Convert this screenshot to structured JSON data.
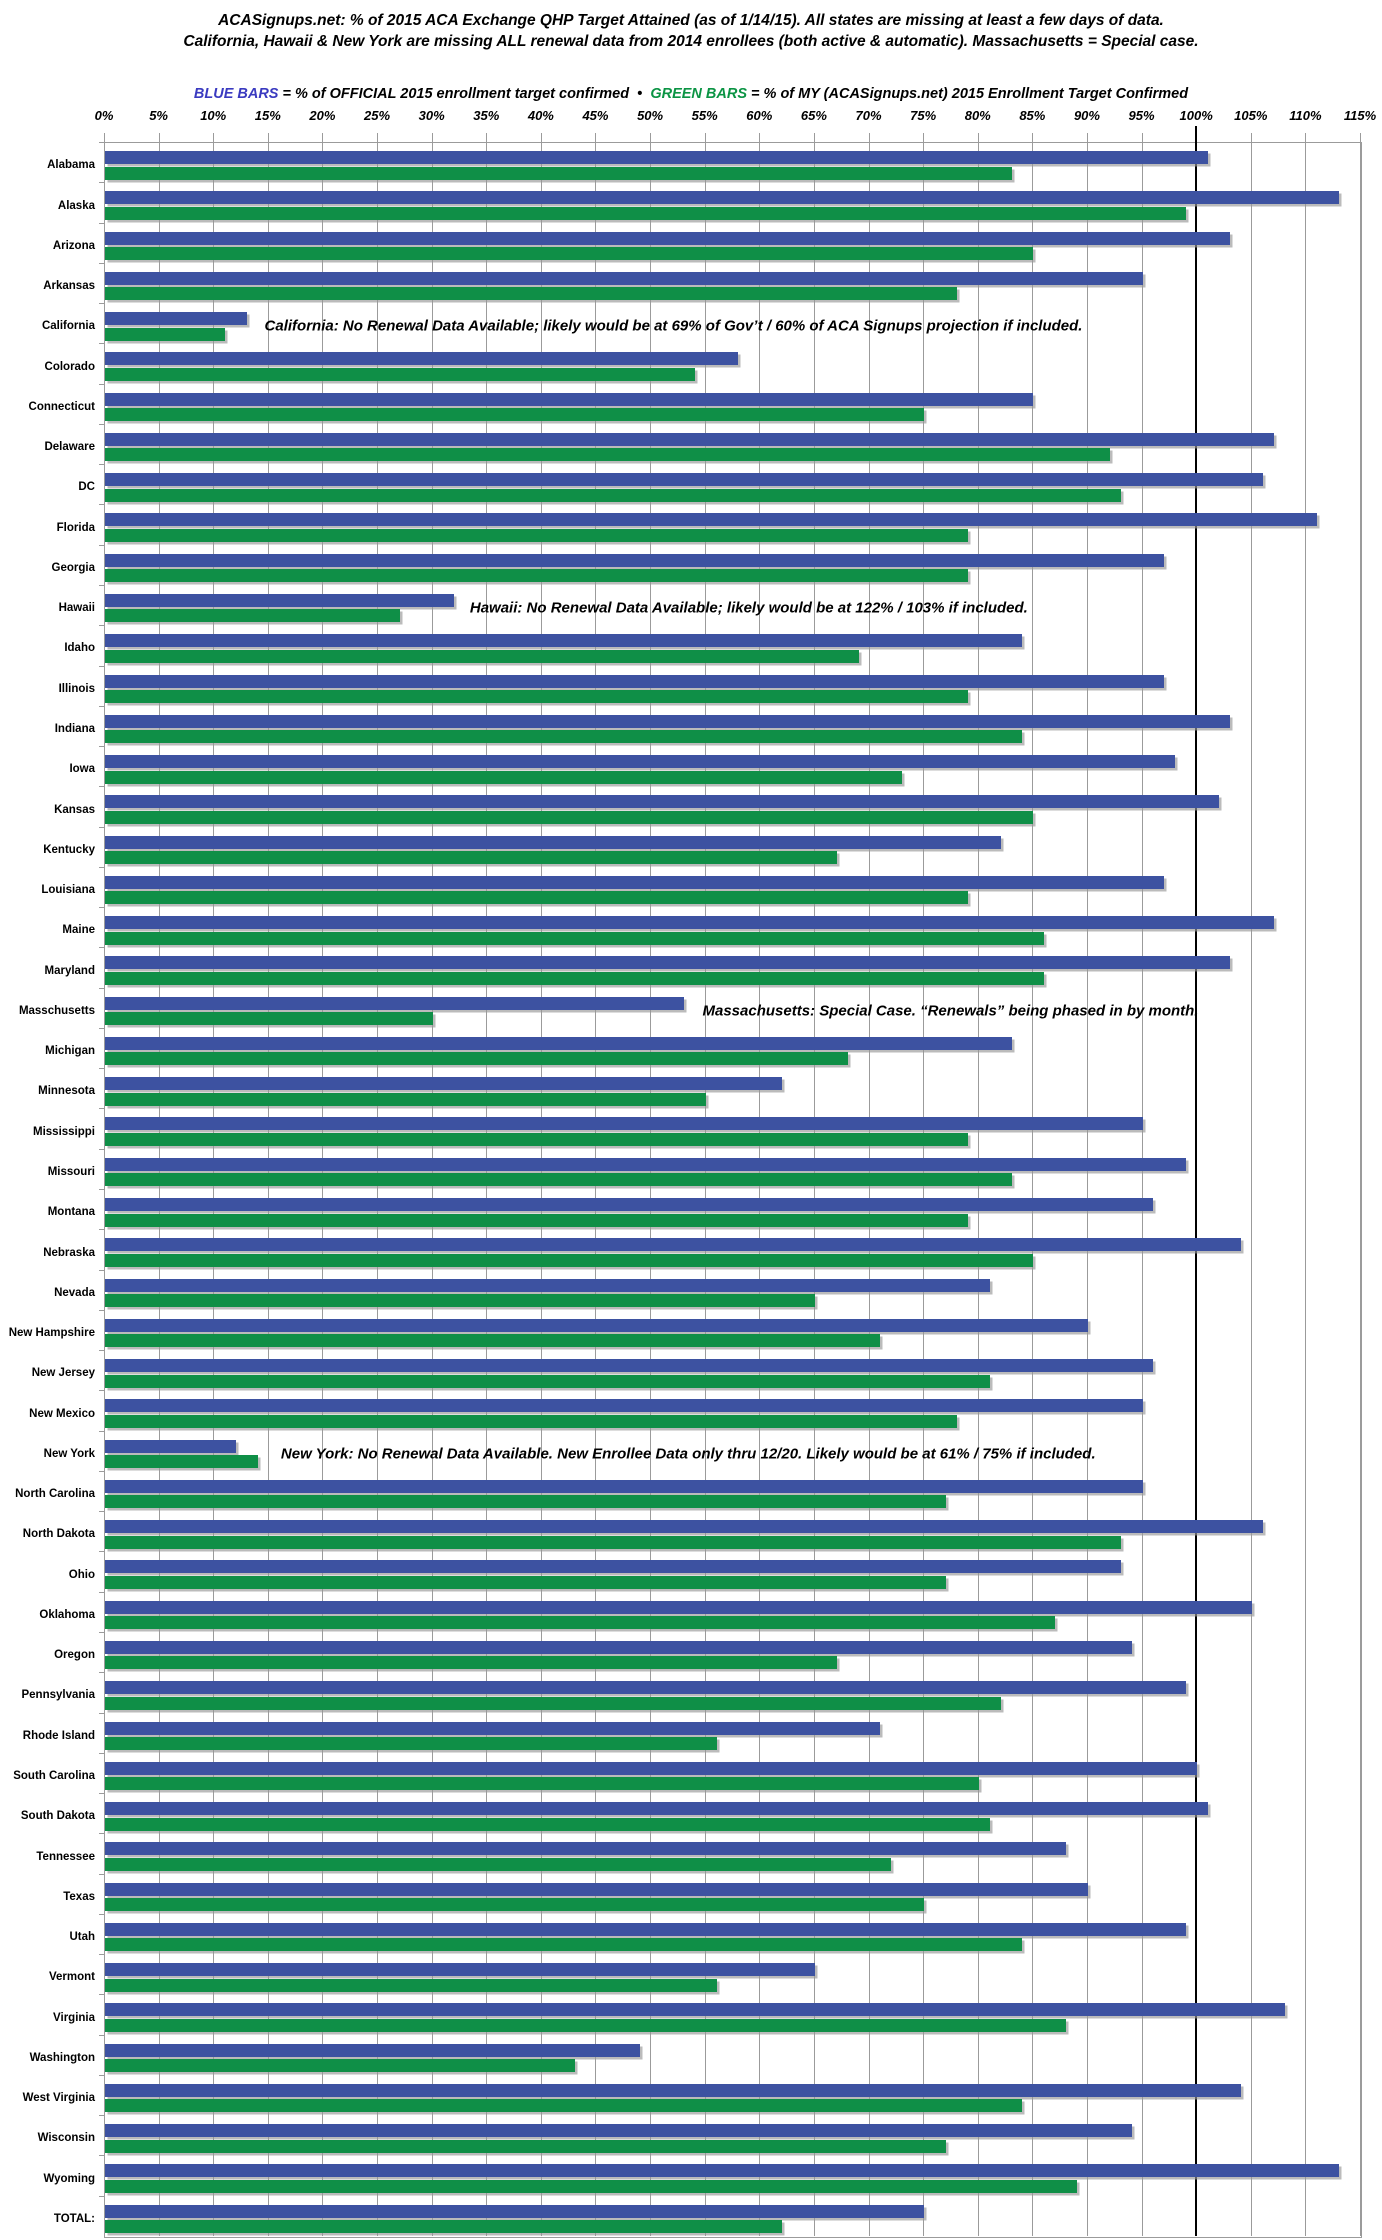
{
  "header": {
    "title_line1": "ACASignups.net: % of 2015 ACA Exchange QHP Target Attained (as of 1/14/15). All states are missing at least a few days of data.",
    "title_line2": "California, Hawaii & New York are missing ALL renewal data from 2014 enrollees (both active & automatic). Massachusetts = Special case.",
    "legend": {
      "blue_label": "BLUE BARS",
      "blue_text": " = % of OFFICIAL 2015 enrollment target confirmed",
      "separator": "  •  ",
      "green_label": "GREEN BARS",
      "green_text": " = % of MY (ACASignups.net) 2015 Enrollment Target Confirmed"
    }
  },
  "colors": {
    "bar_blue": "#3D52A1",
    "bar_green": "#0F8F47",
    "legend_blue_text": "#3A3AC0",
    "legend_green_text": "#0B9444",
    "gridline": "#9b9b9b",
    "reference_line": "#000000"
  },
  "chart_data": {
    "type": "bar",
    "orientation": "horizontal",
    "title": "ACASignups.net: % of 2015 ACA Exchange QHP Target Attained (as of 1/14/15)",
    "x_axis": {
      "min": 0,
      "max": 115,
      "step": 5,
      "tick_suffix": "%",
      "reference_line_pct": 100,
      "grid": true
    },
    "series": [
      {
        "name": "% of OFFICIAL 2015 enrollment target confirmed",
        "color": "#3D52A1",
        "key": "official_pct"
      },
      {
        "name": "% of MY (ACASignups.net) 2015 Enrollment Target Confirmed",
        "color": "#0F8F47",
        "key": "acasignups_pct"
      }
    ],
    "rows": [
      {
        "label": "Alabama",
        "official_pct": 101,
        "acasignups_pct": 83
      },
      {
        "label": "Alaska",
        "official_pct": 113,
        "acasignups_pct": 99
      },
      {
        "label": "Arizona",
        "official_pct": 103,
        "acasignups_pct": 85
      },
      {
        "label": "Arkansas",
        "official_pct": 95,
        "acasignups_pct": 78
      },
      {
        "label": "California",
        "official_pct": 13,
        "acasignups_pct": 11,
        "note": "California: No Renewal Data Available; likely would be at 69% of Gov’t / 60% of ACA Signups projection if included.",
        "note_x_pct": 14.7
      },
      {
        "label": "Colorado",
        "official_pct": 58,
        "acasignups_pct": 54
      },
      {
        "label": "Connecticut",
        "official_pct": 85,
        "acasignups_pct": 75
      },
      {
        "label": "Delaware",
        "official_pct": 107,
        "acasignups_pct": 92
      },
      {
        "label": "DC",
        "official_pct": 106,
        "acasignups_pct": 93
      },
      {
        "label": "Florida",
        "official_pct": 111,
        "acasignups_pct": 79
      },
      {
        "label": "Georgia",
        "official_pct": 97,
        "acasignups_pct": 79
      },
      {
        "label": "Hawaii",
        "official_pct": 32,
        "acasignups_pct": 27,
        "note": "Hawaii: No Renewal Data Available; likely would be at 122% / 103% if included.",
        "note_x_pct": 33.5
      },
      {
        "label": "Idaho",
        "official_pct": 84,
        "acasignups_pct": 69
      },
      {
        "label": "Illinois",
        "official_pct": 97,
        "acasignups_pct": 79
      },
      {
        "label": "Indiana",
        "official_pct": 103,
        "acasignups_pct": 84
      },
      {
        "label": "Iowa",
        "official_pct": 98,
        "acasignups_pct": 73
      },
      {
        "label": "Kansas",
        "official_pct": 102,
        "acasignups_pct": 85
      },
      {
        "label": "Kentucky",
        "official_pct": 82,
        "acasignups_pct": 67
      },
      {
        "label": "Louisiana",
        "official_pct": 97,
        "acasignups_pct": 79
      },
      {
        "label": "Maine",
        "official_pct": 107,
        "acasignups_pct": 86
      },
      {
        "label": "Maryland",
        "official_pct": 103,
        "acasignups_pct": 86
      },
      {
        "label": "Masschusetts",
        "official_pct": 53,
        "acasignups_pct": 30,
        "note": "Massachusetts: Special Case. “Renewals” being phased in by month.",
        "note_x_pct": 54.8
      },
      {
        "label": "Michigan",
        "official_pct": 83,
        "acasignups_pct": 68
      },
      {
        "label": "Minnesota",
        "official_pct": 62,
        "acasignups_pct": 55
      },
      {
        "label": "Mississippi",
        "official_pct": 95,
        "acasignups_pct": 79
      },
      {
        "label": "Missouri",
        "official_pct": 99,
        "acasignups_pct": 83
      },
      {
        "label": "Montana",
        "official_pct": 96,
        "acasignups_pct": 79
      },
      {
        "label": "Nebraska",
        "official_pct": 104,
        "acasignups_pct": 85
      },
      {
        "label": "Nevada",
        "official_pct": 81,
        "acasignups_pct": 65
      },
      {
        "label": "New Hampshire",
        "official_pct": 90,
        "acasignups_pct": 71
      },
      {
        "label": "New Jersey",
        "official_pct": 96,
        "acasignups_pct": 81
      },
      {
        "label": "New Mexico",
        "official_pct": 95,
        "acasignups_pct": 78
      },
      {
        "label": "New York",
        "official_pct": 12,
        "acasignups_pct": 14,
        "note": "New York: No Renewal Data Available. New Enrollee Data only thru 12/20. Likely would be at 61% / 75% if included.",
        "note_x_pct": 16.2
      },
      {
        "label": "North Carolina",
        "official_pct": 95,
        "acasignups_pct": 77
      },
      {
        "label": "North Dakota",
        "official_pct": 106,
        "acasignups_pct": 93
      },
      {
        "label": "Ohio",
        "official_pct": 93,
        "acasignups_pct": 77
      },
      {
        "label": "Oklahoma",
        "official_pct": 105,
        "acasignups_pct": 87
      },
      {
        "label": "Oregon",
        "official_pct": 94,
        "acasignups_pct": 67
      },
      {
        "label": "Pennsylvania",
        "official_pct": 99,
        "acasignups_pct": 82
      },
      {
        "label": "Rhode Island",
        "official_pct": 71,
        "acasignups_pct": 56
      },
      {
        "label": "South Carolina",
        "official_pct": 100,
        "acasignups_pct": 80
      },
      {
        "label": "South Dakota",
        "official_pct": 101,
        "acasignups_pct": 81
      },
      {
        "label": "Tennessee",
        "official_pct": 88,
        "acasignups_pct": 72
      },
      {
        "label": "Texas",
        "official_pct": 90,
        "acasignups_pct": 75
      },
      {
        "label": "Utah",
        "official_pct": 99,
        "acasignups_pct": 84
      },
      {
        "label": "Vermont",
        "official_pct": 65,
        "acasignups_pct": 56
      },
      {
        "label": "Virginia",
        "official_pct": 108,
        "acasignups_pct": 88
      },
      {
        "label": "Washington",
        "official_pct": 49,
        "acasignups_pct": 43
      },
      {
        "label": "West Virginia",
        "official_pct": 104,
        "acasignups_pct": 84
      },
      {
        "label": "Wisconsin",
        "official_pct": 94,
        "acasignups_pct": 77
      },
      {
        "label": "Wyoming",
        "official_pct": 113,
        "acasignups_pct": 89
      },
      {
        "label": "TOTAL:",
        "official_pct": 75,
        "acasignups_pct": 62
      }
    ]
  }
}
